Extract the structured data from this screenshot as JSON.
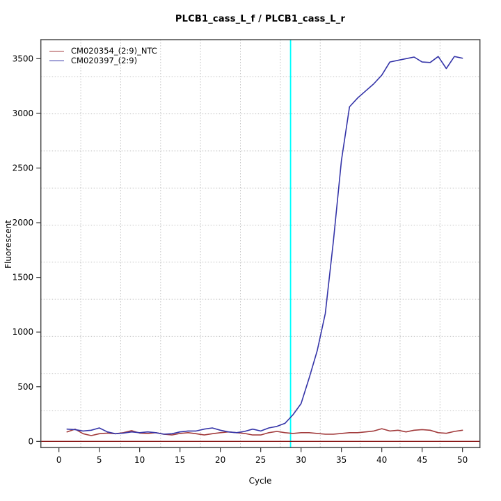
{
  "chart_data": {
    "type": "line",
    "title": "PLCB1_cass_L_f / PLCB1_cass_L_r",
    "xlabel": "Cycle",
    "ylabel": "Fluorescent",
    "xlim": [
      -2.24,
      52.16
    ],
    "ylim": [
      -57,
      3674
    ],
    "x_ticks": [
      0,
      5,
      10,
      15,
      20,
      25,
      30,
      35,
      40,
      45,
      50
    ],
    "y_ticks": [
      0,
      500,
      1000,
      1500,
      2000,
      2500,
      3000,
      3500
    ],
    "grid": {
      "on": true,
      "divisions": 11,
      "color": "#c2c2c2",
      "style": "dotted"
    },
    "legend_position": "top-left",
    "x": [
      1,
      2,
      3,
      4,
      5,
      6,
      7,
      8,
      9,
      10,
      11,
      12,
      13,
      14,
      15,
      16,
      17,
      18,
      19,
      20,
      21,
      22,
      23,
      24,
      25,
      26,
      27,
      28,
      29,
      30,
      31,
      32,
      33,
      34,
      35,
      36,
      37,
      38,
      39,
      40,
      41,
      42,
      43,
      44,
      45,
      46,
      47,
      48,
      49,
      50
    ],
    "series": [
      {
        "name": "CM020354_(2:9)_NTC",
        "color": "#a23b3c",
        "values": [
          87,
          112,
          70,
          53,
          70,
          76,
          70,
          80,
          98,
          76,
          73,
          80,
          66,
          59,
          73,
          80,
          70,
          59,
          70,
          80,
          87,
          80,
          73,
          59,
          59,
          80,
          91,
          80,
          73,
          80,
          80,
          73,
          66,
          66,
          73,
          80,
          80,
          87,
          95,
          116,
          95,
          102,
          87,
          102,
          108,
          102,
          80,
          74,
          91,
          102
        ]
      },
      {
        "name": "CM020397_(2:9)",
        "color": "#3434a8",
        "values": [
          112,
          108,
          95,
          102,
          123,
          87,
          70,
          76,
          87,
          80,
          87,
          80,
          66,
          70,
          87,
          95,
          95,
          112,
          123,
          102,
          87,
          80,
          91,
          112,
          95,
          123,
          137,
          165,
          244,
          346,
          580,
          830,
          1170,
          1830,
          2570,
          3060,
          3140,
          3205,
          3270,
          3350,
          3470,
          3485,
          3500,
          3515,
          3470,
          3465,
          3520,
          3410,
          3520,
          3505
        ]
      }
    ],
    "threshold_line": {
      "y": 0,
      "color": "#8b1a1a"
    },
    "ct_line": {
      "x": 28.7,
      "color": "#00ffff"
    },
    "box_color": "#4a4a4a",
    "tick_color": "#333333"
  }
}
